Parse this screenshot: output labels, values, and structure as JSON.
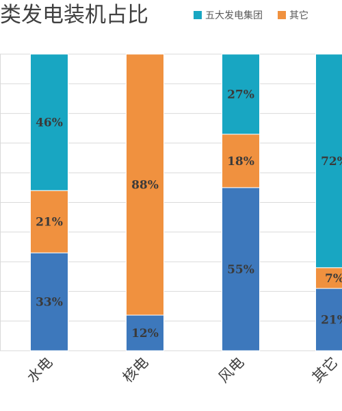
{
  "chart_data": {
    "type": "bar",
    "stacked": true,
    "percent": true,
    "title": "类发电装机占比",
    "categories": [
      "水电",
      "核电",
      "风电",
      "其它"
    ],
    "series": [
      {
        "name": "五大发电集团",
        "color": "#3d78bc",
        "values": [
          33,
          12,
          55,
          21
        ]
      },
      {
        "name": "其它",
        "color": "#f0913f",
        "values": [
          21,
          88,
          18,
          7
        ]
      },
      {
        "name": "",
        "color": "#18a6c2",
        "values": [
          46,
          0,
          27,
          72
        ]
      }
    ],
    "ylim": [
      0,
      100
    ],
    "grid": true,
    "legend_position": "top",
    "data_labels": true
  }
}
